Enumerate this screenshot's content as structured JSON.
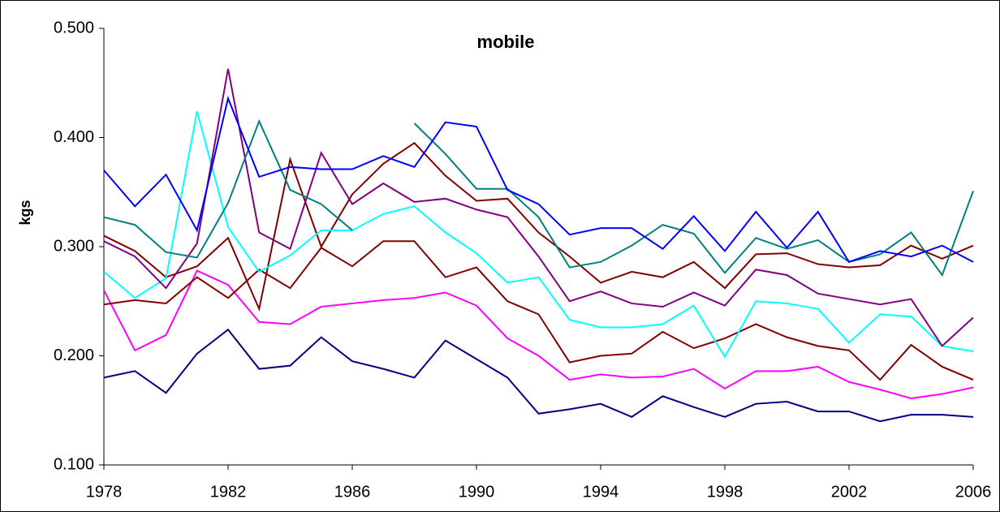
{
  "chart_data": {
    "type": "line",
    "title": "mobile",
    "y_label": "kgs",
    "x": [
      1978,
      1979,
      1980,
      1981,
      1982,
      1983,
      1984,
      1985,
      1986,
      1987,
      1988,
      1989,
      1990,
      1991,
      1992,
      1993,
      1994,
      1995,
      1996,
      1997,
      1998,
      1999,
      2000,
      2001,
      2002,
      2003,
      2004,
      2005,
      2006
    ],
    "xlim": [
      1978,
      2006
    ],
    "xticks": [
      1978,
      1982,
      1986,
      1990,
      1994,
      1998,
      2002,
      2006
    ],
    "ylim": [
      0.1,
      0.5
    ],
    "yticks": [
      {
        "value": 0.1,
        "label": "0.100"
      },
      {
        "value": 0.2,
        "label": "0.200"
      },
      {
        "value": 0.3,
        "label": "0.300"
      },
      {
        "value": 0.4,
        "label": "0.400"
      },
      {
        "value": 0.5,
        "label": "0.500"
      }
    ],
    "series": [
      {
        "color": "#000080",
        "values": [
          0.18,
          0.186,
          0.166,
          0.202,
          0.224,
          0.188,
          0.191,
          0.217,
          0.195,
          0.188,
          0.18,
          0.214,
          0.197,
          0.18,
          0.147,
          0.151,
          0.156,
          0.144,
          0.163,
          0.153,
          0.144,
          0.156,
          0.158,
          0.149,
          0.149,
          0.14,
          0.146,
          0.146,
          0.144
        ]
      },
      {
        "color": "#ff00ff",
        "values": [
          0.26,
          0.205,
          0.219,
          0.278,
          0.265,
          0.231,
          0.229,
          0.245,
          0.248,
          0.251,
          0.253,
          0.258,
          0.246,
          0.216,
          0.2,
          0.178,
          0.183,
          0.18,
          0.181,
          0.188,
          0.17,
          0.186,
          0.186,
          0.19,
          0.176,
          0.169,
          0.161,
          0.165,
          0.171
        ]
      },
      {
        "color": "#800000",
        "values": [
          0.247,
          0.251,
          0.248,
          0.272,
          0.253,
          0.279,
          0.262,
          0.299,
          0.282,
          0.305,
          0.305,
          0.272,
          0.281,
          0.25,
          0.238,
          0.194,
          0.2,
          0.202,
          0.222,
          0.207,
          0.216,
          0.229,
          0.217,
          0.209,
          0.205,
          0.178,
          0.21,
          0.19,
          0.178
        ]
      },
      {
        "color": "#800000",
        "values": [
          0.31,
          0.296,
          0.272,
          0.282,
          0.308,
          0.243,
          0.38,
          0.3,
          0.348,
          0.376,
          0.395,
          0.365,
          0.342,
          0.344,
          0.313,
          0.291,
          0.267,
          0.277,
          0.272,
          0.286,
          0.262,
          0.293,
          0.294,
          0.284,
          0.281,
          0.283,
          0.301,
          0.289,
          0.301
        ]
      },
      {
        "color": "#00ffff",
        "values": [
          0.277,
          0.253,
          0.271,
          0.424,
          0.318,
          0.277,
          0.292,
          0.315,
          0.315,
          0.33,
          0.337,
          0.313,
          0.294,
          0.267,
          0.272,
          0.233,
          0.226,
          0.226,
          0.229,
          0.246,
          0.199,
          0.25,
          0.248,
          0.243,
          0.212,
          0.238,
          0.236,
          0.209,
          0.204
        ]
      },
      {
        "color": "#800080",
        "values": [
          0.305,
          0.291,
          0.262,
          0.303,
          0.463,
          0.313,
          0.298,
          0.386,
          0.339,
          0.358,
          0.341,
          0.344,
          0.334,
          0.327,
          0.291,
          0.25,
          0.259,
          0.248,
          0.245,
          0.258,
          0.246,
          0.279,
          0.274,
          0.257,
          0.252,
          0.247,
          0.252,
          0.209,
          0.235
        ]
      },
      {
        "color": "#008080",
        "values": [
          0.327,
          0.32,
          0.295,
          0.29,
          0.34,
          0.415,
          0.352,
          0.339,
          0.315,
          null,
          0.413,
          0.385,
          0.353,
          0.353,
          0.327,
          0.281,
          0.286,
          0.301,
          0.32,
          0.312,
          0.276,
          0.308,
          0.298,
          0.306,
          0.286,
          0.293,
          0.313,
          0.274,
          0.351
        ]
      },
      {
        "color": "#0000ff",
        "values": [
          0.37,
          0.337,
          0.366,
          0.315,
          0.436,
          0.364,
          0.373,
          0.371,
          0.371,
          0.383,
          0.373,
          0.414,
          0.41,
          0.352,
          0.339,
          0.311,
          0.317,
          0.317,
          0.298,
          0.328,
          0.296,
          0.332,
          0.299,
          0.332,
          0.286,
          0.296,
          0.291,
          0.301,
          0.286
        ]
      }
    ]
  }
}
